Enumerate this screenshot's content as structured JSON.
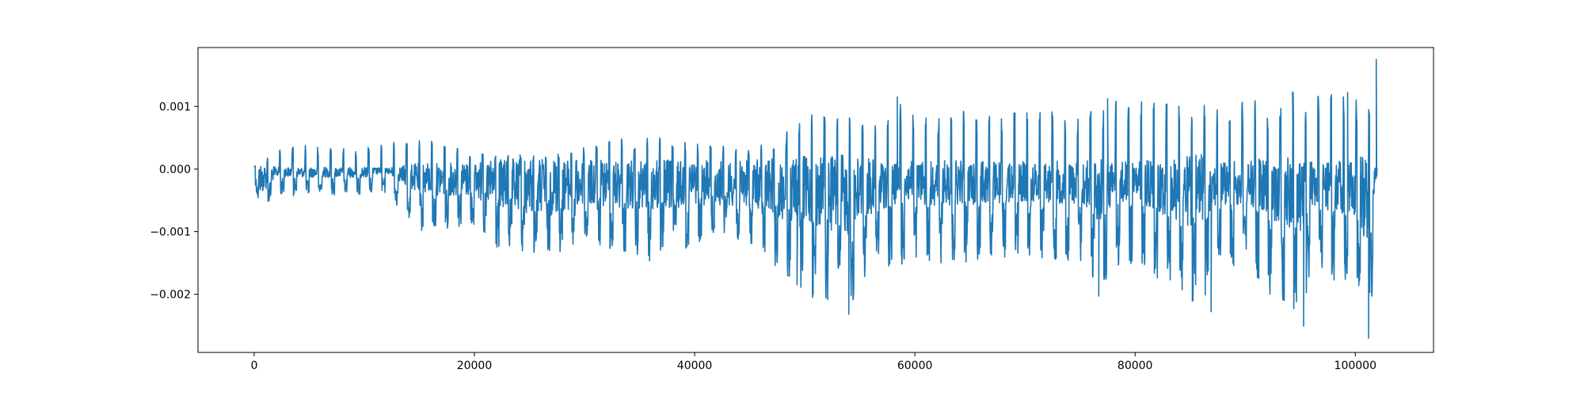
{
  "chart_data": {
    "type": "line",
    "title": "",
    "xlabel": "",
    "ylabel": "",
    "xlim": [
      -5100,
      107100
    ],
    "ylim": [
      -0.00293,
      0.00194
    ],
    "grid": false,
    "legend": "none",
    "x_ticks": [
      {
        "value": 0,
        "label": "0"
      },
      {
        "value": 20000,
        "label": "20000"
      },
      {
        "value": 40000,
        "label": "40000"
      },
      {
        "value": 60000,
        "label": "60000"
      },
      {
        "value": 80000,
        "label": "80000"
      },
      {
        "value": 100000,
        "label": "100000"
      }
    ],
    "y_ticks": [
      {
        "value": 0.001,
        "label": "0.001"
      },
      {
        "value": 0.0,
        "label": "0.000"
      },
      {
        "value": -0.001,
        "label": "−0.001"
      },
      {
        "value": -0.002,
        "label": "−0.002"
      }
    ],
    "series": [
      {
        "color": "#1f77b4",
        "x_range": [
          0,
          102000
        ],
        "envelope": {
          "x": [
            0,
            600,
            2000,
            5000,
            10000,
            12000,
            15000,
            20000,
            22000,
            27000,
            30000,
            36000,
            37000,
            40000,
            45000,
            49000,
            50000,
            54000,
            56000,
            58000,
            60000,
            62000,
            65000,
            70000,
            75000,
            76700,
            78000,
            80000,
            86000,
            87000,
            90000,
            95000,
            96000,
            100000,
            101000,
            101700,
            102000
          ],
          "upper": [
            5e-05,
            5e-05,
            0.00035,
            0.0004,
            0.0003,
            0.00055,
            0.00055,
            0.00025,
            0.00025,
            0.00022,
            0.00035,
            0.0006,
            0.0005,
            0.0004,
            0.00035,
            0.00065,
            0.0009,
            0.00085,
            0.0007,
            0.00115,
            0.00095,
            0.0009,
            0.00095,
            0.0009,
            0.00095,
            0.001,
            0.0011,
            0.0011,
            0.001,
            0.0011,
            0.0011,
            0.00125,
            0.00125,
            0.00125,
            0.0011,
            0.00175,
            0.0001
          ],
          "lower": [
            -0.0002,
            -0.00075,
            -0.0004,
            -0.00045,
            -0.0004,
            -0.0004,
            -0.001,
            -0.0009,
            -0.0013,
            -0.0014,
            -0.0012,
            -0.0015,
            -0.00145,
            -0.0012,
            -0.0012,
            -0.00185,
            -0.002,
            -0.0023,
            -0.00165,
            -0.0016,
            -0.0015,
            -0.0015,
            -0.0015,
            -0.0014,
            -0.0015,
            -0.002,
            -0.0016,
            -0.0015,
            -0.0023,
            -0.0016,
            -0.0016,
            -0.0025,
            -0.0017,
            -0.002,
            -0.0027,
            -0.0018,
            -0.0001
          ]
        },
        "spikes": [
          {
            "x": 49300,
            "y": -0.00185
          },
          {
            "x": 50700,
            "y": -0.00205
          },
          {
            "x": 54000,
            "y": -0.00232
          },
          {
            "x": 58400,
            "y": 0.00115
          },
          {
            "x": 76700,
            "y": -0.00203
          },
          {
            "x": 77500,
            "y": 0.00112
          },
          {
            "x": 86900,
            "y": -0.00228
          },
          {
            "x": 95300,
            "y": -0.00251
          },
          {
            "x": 94300,
            "y": 0.00123
          },
          {
            "x": 99300,
            "y": 0.00122
          },
          {
            "x": 101200,
            "y": -0.0027
          },
          {
            "x": 101900,
            "y": 0.00175
          }
        ]
      }
    ]
  }
}
